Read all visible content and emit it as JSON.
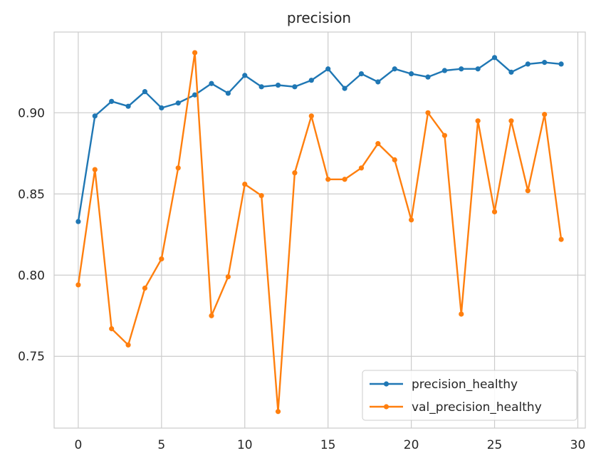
{
  "chart_data": {
    "type": "line",
    "title": "precision",
    "xlabel": "",
    "ylabel": "",
    "xlim": [
      -1.45,
      30.45
    ],
    "ylim": [
      0.7058,
      0.9497
    ],
    "x_ticks": [
      0,
      5,
      10,
      15,
      20,
      25,
      30
    ],
    "x_tick_labels": [
      "0",
      "5",
      "10",
      "15",
      "20",
      "25",
      "30"
    ],
    "y_ticks": [
      0.75,
      0.8,
      0.85,
      0.9
    ],
    "y_tick_labels": [
      "0.75",
      "0.80",
      "0.85",
      "0.90"
    ],
    "grid": true,
    "legend_position": "bottom-right",
    "x": [
      0,
      1,
      2,
      3,
      4,
      5,
      6,
      7,
      8,
      9,
      10,
      11,
      12,
      13,
      14,
      15,
      16,
      17,
      18,
      19,
      20,
      21,
      22,
      23,
      24,
      25,
      26,
      27,
      28,
      29
    ],
    "series": [
      {
        "name": "precision_healthy",
        "color": "#1f77b4",
        "marker": "circle",
        "values": [
          0.833,
          0.898,
          0.907,
          0.904,
          0.913,
          0.903,
          0.906,
          0.911,
          0.918,
          0.912,
          0.923,
          0.916,
          0.917,
          0.916,
          0.92,
          0.927,
          0.915,
          0.924,
          0.919,
          0.927,
          0.924,
          0.922,
          0.926,
          0.927,
          0.927,
          0.934,
          0.925,
          0.93,
          0.931,
          0.93
        ]
      },
      {
        "name": "val_precision_healthy",
        "color": "#ff7f0e",
        "marker": "circle",
        "values": [
          0.794,
          0.865,
          0.767,
          0.757,
          0.792,
          0.81,
          0.866,
          0.937,
          0.775,
          0.799,
          0.856,
          0.849,
          0.716,
          0.863,
          0.898,
          0.859,
          0.859,
          0.866,
          0.881,
          0.871,
          0.834,
          0.9,
          0.886,
          0.776,
          0.895,
          0.839,
          0.895,
          0.852,
          0.899,
          0.822
        ]
      }
    ]
  }
}
